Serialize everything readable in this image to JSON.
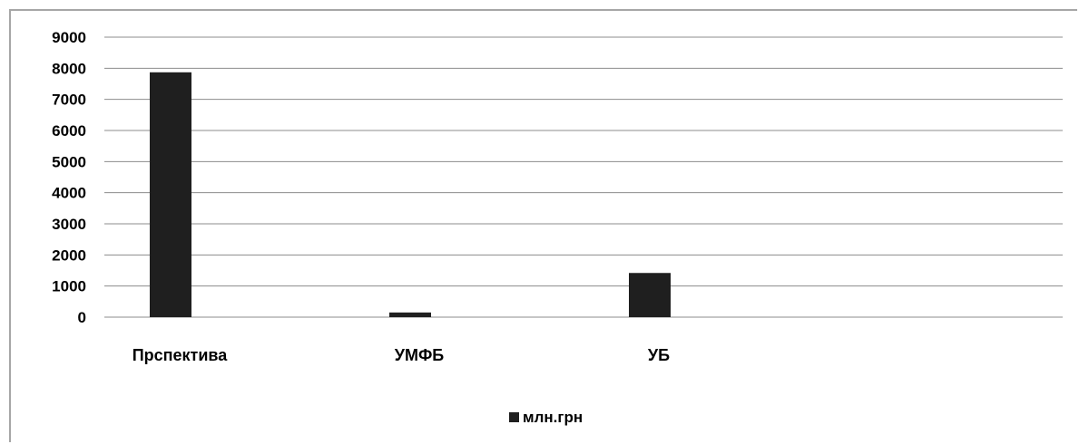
{
  "chart_data": {
    "type": "bar",
    "categories": [
      "Прспектива",
      "УМФБ",
      "УБ",
      ""
    ],
    "series": [
      {
        "name": "млн.грн",
        "values": [
          7870,
          150,
          1420,
          null
        ],
        "color": "#1f1f1f"
      }
    ],
    "title": "",
    "xlabel": "",
    "ylabel": "",
    "ylim": [
      0,
      9000
    ],
    "yticks": [
      "0",
      "1000",
      "2000",
      "3000",
      "4000",
      "5000",
      "6000",
      "7000",
      "8000",
      "9000"
    ],
    "grid": true,
    "legend": "bottom-center",
    "gridline_color": "#8c8c8c",
    "axis_color": "#8c8c8c",
    "frame_color": "#a6a6a6"
  }
}
